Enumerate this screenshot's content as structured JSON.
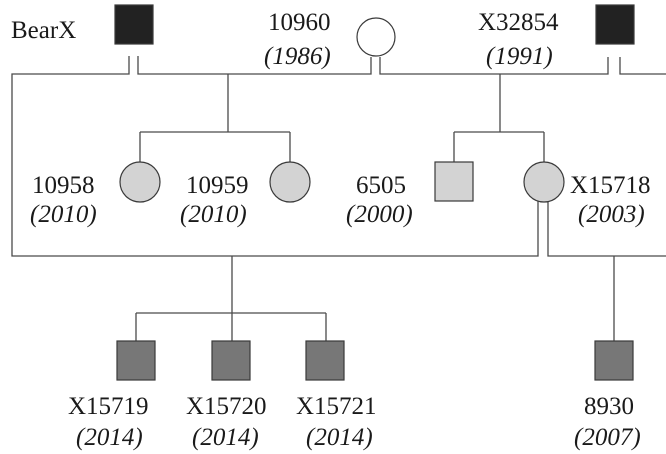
{
  "pedigree": {
    "colors": {
      "founder": "#222222",
      "unfilled": "#ffffff",
      "generation2": "#d3d3d3",
      "generation3": "#777777",
      "line": "#4a4a4a"
    },
    "individuals": {
      "bearx": {
        "id": "BearX",
        "sex": "male",
        "fill": "founder"
      },
      "i10960": {
        "id": "10960",
        "year": "(1986)",
        "sex": "female",
        "fill": "unfilled"
      },
      "x32854": {
        "id": "X32854",
        "year": "(1991)",
        "sex": "male",
        "fill": "founder"
      },
      "i10958": {
        "id": "10958",
        "year": "(2010)",
        "sex": "female",
        "fill": "generation2"
      },
      "i10959": {
        "id": "10959",
        "year": "(2010)",
        "sex": "female",
        "fill": "generation2"
      },
      "i6505": {
        "id": "6505",
        "year": "(2000)",
        "sex": "male",
        "fill": "generation2"
      },
      "x15718": {
        "id": "X15718",
        "year": "(2003)",
        "sex": "female",
        "fill": "generation2"
      },
      "x15719": {
        "id": "X15719",
        "year": "(2014)",
        "sex": "male",
        "fill": "generation3"
      },
      "x15720": {
        "id": "X15720",
        "year": "(2014)",
        "sex": "male",
        "fill": "generation3"
      },
      "x15721": {
        "id": "X15721",
        "year": "(2014)",
        "sex": "male",
        "fill": "generation3"
      },
      "i8930": {
        "id": "8930",
        "year": "(2007)",
        "sex": "male",
        "fill": "generation3"
      }
    }
  }
}
